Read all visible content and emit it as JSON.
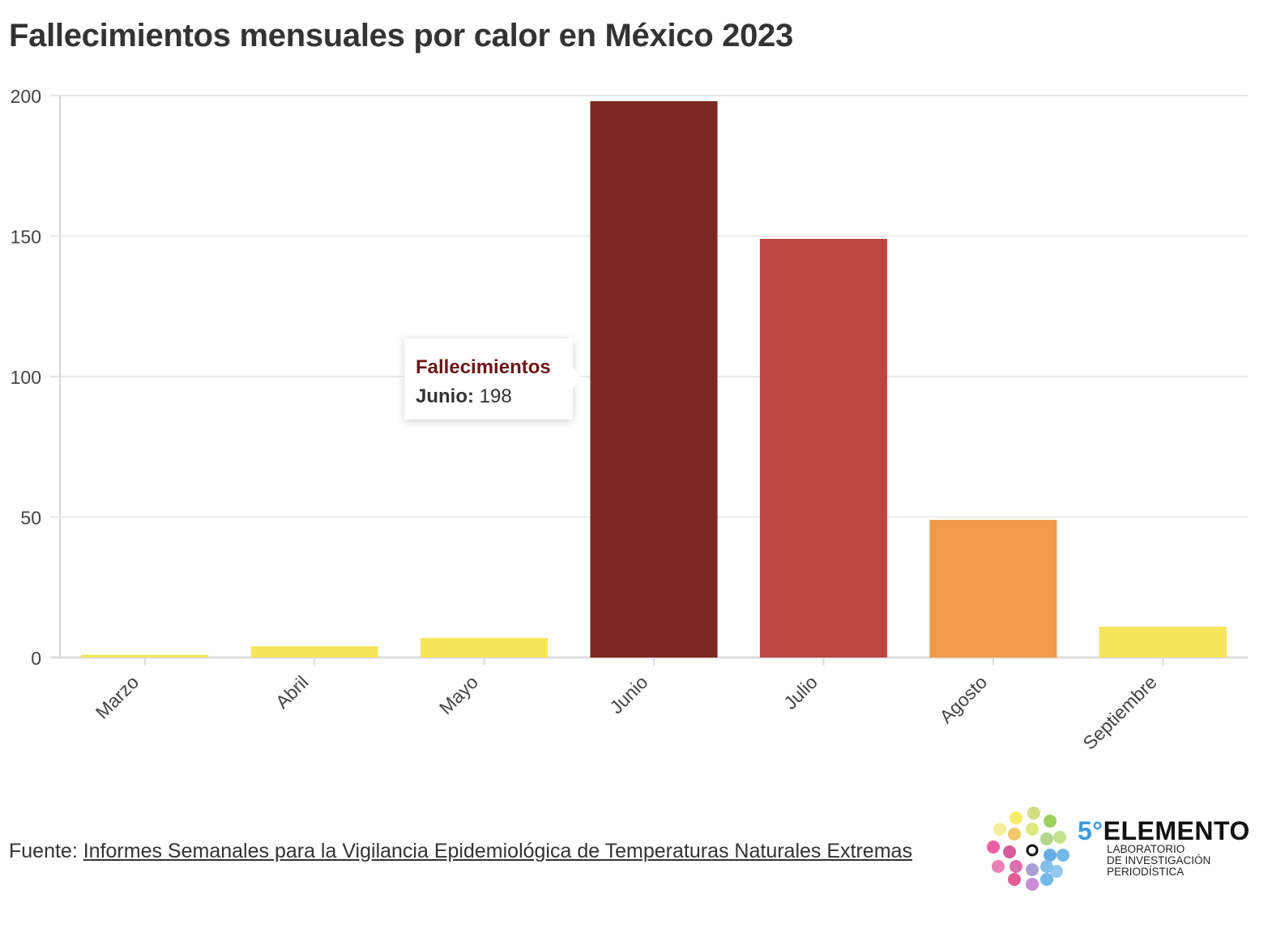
{
  "title": "Fallecimientos mensuales por calor en México 2023",
  "tooltip": {
    "series": "Fallecimientos",
    "label": "Junio:",
    "value": "198"
  },
  "footer": {
    "prefix": "Fuente: ",
    "link_text": "Informes Semanales para la Vigilancia Epidemiológica de Temperaturas Naturales Extremas"
  },
  "logo": {
    "number": "5°",
    "name": "ELEMENTO",
    "line1": "LABORATORIO",
    "line2": "DE INVESTIGACIÓN",
    "line3": "PERIODÍSTICA"
  },
  "chart_data": {
    "type": "bar",
    "title": "Fallecimientos mensuales por calor en México 2023",
    "categories": [
      "Marzo",
      "Abril",
      "Mayo",
      "Junio",
      "Julio",
      "Agosto",
      "Septiembre"
    ],
    "series": [
      {
        "name": "Fallecimientos",
        "values": [
          1,
          4,
          7,
          198,
          149,
          49,
          11
        ]
      }
    ],
    "colors": [
      "#f4e55c",
      "#f4e55c",
      "#f4e55c",
      "#7b2723",
      "#bb4642",
      "#ef9b4a",
      "#f4e55c"
    ],
    "ylim": [
      0,
      200
    ],
    "yticks": [
      0,
      50,
      100,
      150,
      200
    ],
    "grid": true,
    "legend": "none"
  }
}
